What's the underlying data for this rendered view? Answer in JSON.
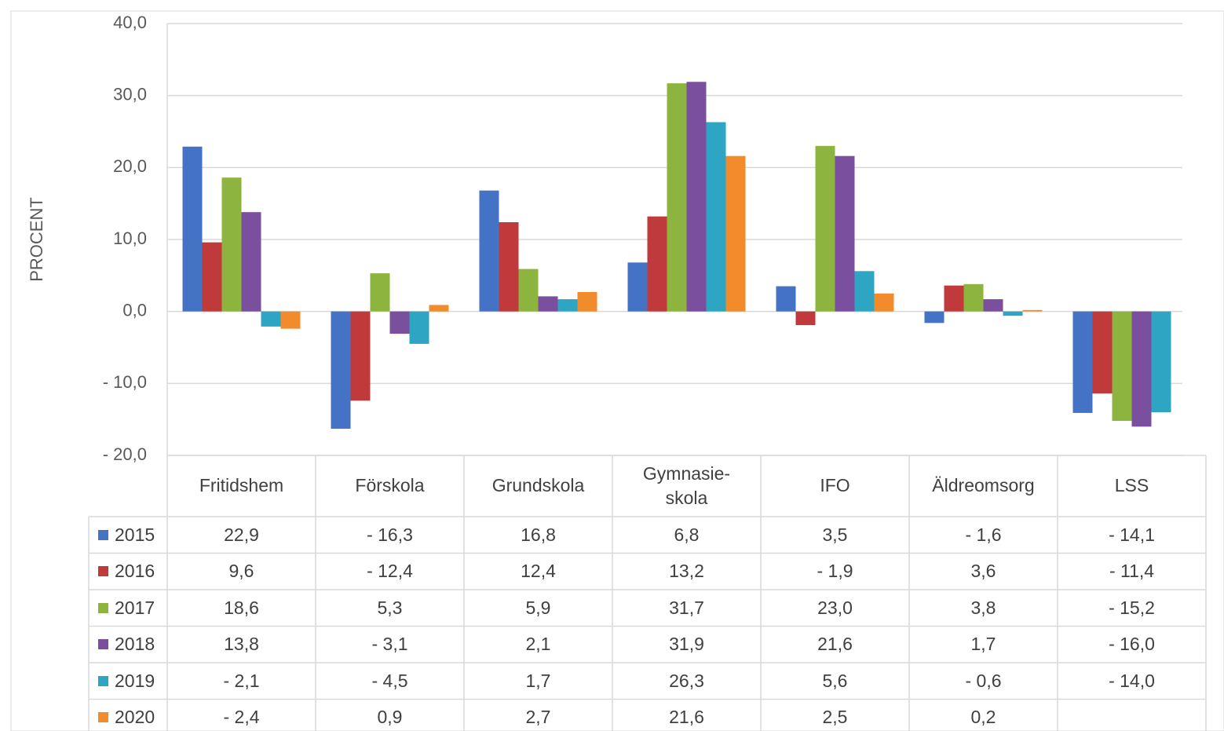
{
  "chart_data": {
    "type": "bar",
    "y_label": "PROCENT",
    "categories": [
      "Fritidshem",
      "Förskola",
      "Grundskola",
      "Gymnasie-\nskola",
      "IFO",
      "Äldreomsorg",
      "LSS"
    ],
    "series": [
      {
        "name": "2015",
        "color": "#4472c4",
        "values": [
          22.9,
          -16.3,
          16.8,
          6.8,
          3.5,
          -1.6,
          -14.1
        ],
        "value_labels": [
          "22,9",
          "- 16,3",
          "16,8",
          "6,8",
          "3,5",
          "- 1,6",
          "- 14,1"
        ]
      },
      {
        "name": "2016",
        "color": "#c0393b",
        "values": [
          9.6,
          -12.4,
          12.4,
          13.2,
          -1.9,
          3.6,
          -11.4
        ],
        "value_labels": [
          "9,6",
          "- 12,4",
          "12,4",
          "13,2",
          "- 1,9",
          "3,6",
          "- 11,4"
        ]
      },
      {
        "name": "2017",
        "color": "#8cb43e",
        "values": [
          18.6,
          5.3,
          5.9,
          31.7,
          23.0,
          3.8,
          -15.2
        ],
        "value_labels": [
          "18,6",
          "5,3",
          "5,9",
          "31,7",
          "23,0",
          "3,8",
          "- 15,2"
        ]
      },
      {
        "name": "2018",
        "color": "#7a4f9e",
        "values": [
          13.8,
          -3.1,
          2.1,
          31.9,
          21.6,
          1.7,
          -16.0
        ],
        "value_labels": [
          "13,8",
          "- 3,1",
          "2,1",
          "31,9",
          "21,6",
          "1,7",
          "- 16,0"
        ]
      },
      {
        "name": "2019",
        "color": "#2ea5c3",
        "values": [
          -2.1,
          -4.5,
          1.7,
          26.3,
          5.6,
          -0.6,
          -14.0
        ],
        "value_labels": [
          "- 2,1",
          "- 4,5",
          "1,7",
          "26,3",
          "5,6",
          "- 0,6",
          "- 14,0"
        ]
      },
      {
        "name": "2020",
        "color": "#f28b2c",
        "values": [
          -2.4,
          0.9,
          2.7,
          21.6,
          2.5,
          0.2,
          null
        ],
        "value_labels": [
          "- 2,4",
          "0,9",
          "2,7",
          "21,6",
          "2,5",
          "0,2",
          null
        ]
      }
    ],
    "ylim": [
      -20,
      40
    ],
    "yticks": [
      {
        "value": -20,
        "label": "- 20,0"
      },
      {
        "value": -10,
        "label": "- 10,0"
      },
      {
        "value": 0,
        "label": "0,0"
      },
      {
        "value": 10,
        "label": "10,0"
      },
      {
        "value": 20,
        "label": "20,0"
      },
      {
        "value": 30,
        "label": "30,0"
      },
      {
        "value": 40,
        "label": "40,0"
      }
    ],
    "grid": true,
    "data_table": true
  }
}
